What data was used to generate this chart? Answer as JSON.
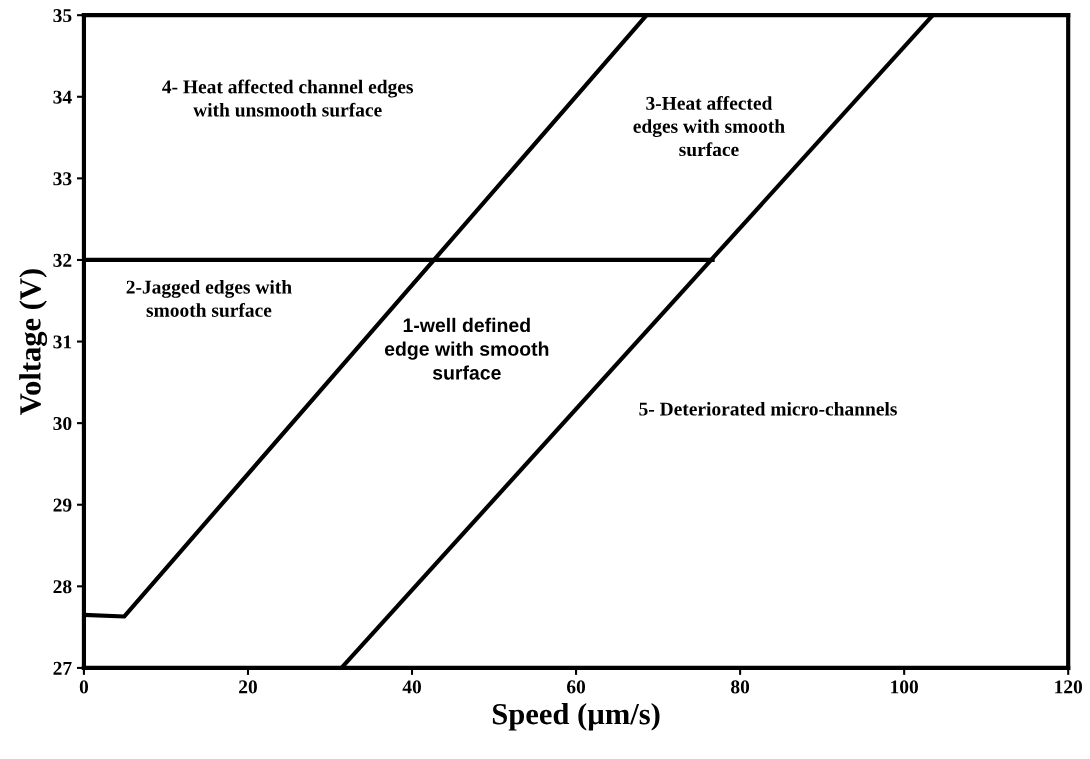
{
  "chart_data": {
    "type": "line",
    "xlabel": "Speed (µm/s)",
    "ylabel": "Voltage (V)",
    "xlim": [
      0,
      120
    ],
    "ylim": [
      27,
      35
    ],
    "xticks": [
      0,
      20,
      40,
      60,
      80,
      100,
      120
    ],
    "yticks": [
      27,
      28,
      29,
      30,
      31,
      32,
      33,
      34,
      35
    ],
    "grid": false,
    "marker": "none",
    "line_style": "solid",
    "series": [
      {
        "color": "#000000",
        "x": [
          0,
          4.9,
          68.6
        ],
        "values": [
          27.65,
          27.63,
          35
        ]
      },
      {
        "color": "#000000",
        "x": [
          31.4,
          103.5
        ],
        "values": [
          27,
          35
        ]
      },
      {
        "color": "#000000",
        "x": [
          0,
          76.9
        ],
        "values": [
          32,
          32
        ]
      }
    ],
    "annotations": [
      "4- Heat affected channel edges\nwith unsmooth surface",
      "3-Heat affected\nedges with smooth\nsurface",
      "2-Jagged edges with\nsmooth surface",
      "1-well defined\nedge with smooth\nsurface",
      "5- Deteriorated micro-channels"
    ]
  }
}
